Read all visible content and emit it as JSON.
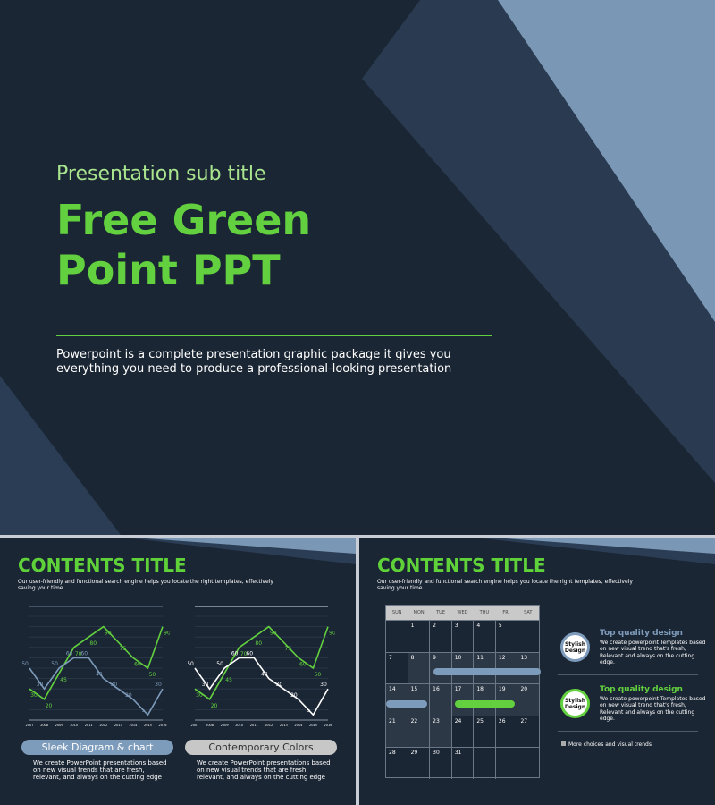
{
  "slide1": {
    "subtitle": "Presentation sub title",
    "title_line1": "Free Green",
    "title_line2": "Point PPT",
    "description": "Powerpoint is a complete presentation graphic package it gives you everything you need to produce a professional-looking presentation"
  },
  "slide2": {
    "title": "CONTENTS TITLE",
    "description": "Our user-friendly and functional search engine helps you locate the right templates, effectively saving your time.",
    "pill1": "Sleek Diagram & chart",
    "pill2": "Contemporary Colors",
    "text1": "We create PowerPoint presentations based on new visual trends that are fresh, relevant, and always on the cutting edge",
    "text2": "We create PowerPoint presentations based on new visual trends that are fresh, relevant, and always on the cutting edge"
  },
  "slide3": {
    "title": "CONTENTS TITLE",
    "description": "Our user-friendly and functional search engine helps you locate the right templates, effectively saving your time.",
    "days": [
      "SUN",
      "MON",
      "TUE",
      "WED",
      "THU",
      "FRI",
      "SAT"
    ],
    "weeks": [
      [
        "",
        "1",
        "2",
        "3",
        "4",
        "5",
        ""
      ],
      [
        "7",
        "8",
        "9",
        "10",
        "11",
        "12",
        "13"
      ],
      [
        "14",
        "15",
        "16",
        "17",
        "18",
        "19",
        "20"
      ],
      [
        "21",
        "22",
        "23",
        "24",
        "25",
        "26",
        "27"
      ],
      [
        "28",
        "29",
        "30",
        "31",
        "",
        "",
        ""
      ]
    ],
    "features": [
      {
        "badge": "Stylish Design",
        "heading": "Top quality design",
        "text": "We create powerpoint Templates based on new visual trend that's fresh, Relevant and always on the cutting edge.",
        "color": "#7d9bba"
      },
      {
        "badge": "Stylish Design",
        "heading": "Top quality design",
        "text": "We create powerpoint Templates based on new visual trend that's fresh, Relevant and always on the cutting edge.",
        "color": "#63d13f"
      }
    ],
    "more": "More choices and visual trends"
  },
  "colors": {
    "bg": "#1b2634",
    "green": "#63d13f",
    "lightblue": "#7a98b5",
    "band": "#2b3d54"
  },
  "chart_data": [
    {
      "type": "line",
      "x": [
        "2007",
        "2008",
        "2009",
        "2010",
        "2011",
        "2012",
        "2013",
        "2014",
        "2015",
        "2016"
      ],
      "ylim": [
        0,
        100
      ],
      "grid": true,
      "series": [
        {
          "values": [
            30,
            20,
            45,
            70,
            80,
            90,
            75,
            60,
            50,
            90
          ],
          "color": "#63d13f"
        },
        {
          "values": [
            50,
            30,
            50,
            60,
            60,
            40,
            30,
            20,
            5,
            30
          ],
          "color": "#7d9bba"
        }
      ]
    },
    {
      "type": "line",
      "x": [
        "2007",
        "2008",
        "2009",
        "2010",
        "2011",
        "2012",
        "2013",
        "2014",
        "2015",
        "2016"
      ],
      "ylim": [
        0,
        100
      ],
      "grid": true,
      "series": [
        {
          "values": [
            30,
            20,
            45,
            70,
            80,
            90,
            75,
            60,
            50,
            90
          ],
          "color": "#63d13f"
        },
        {
          "values": [
            50,
            30,
            50,
            60,
            60,
            40,
            30,
            20,
            5,
            30
          ],
          "color": "#ffffff"
        }
      ]
    }
  ]
}
